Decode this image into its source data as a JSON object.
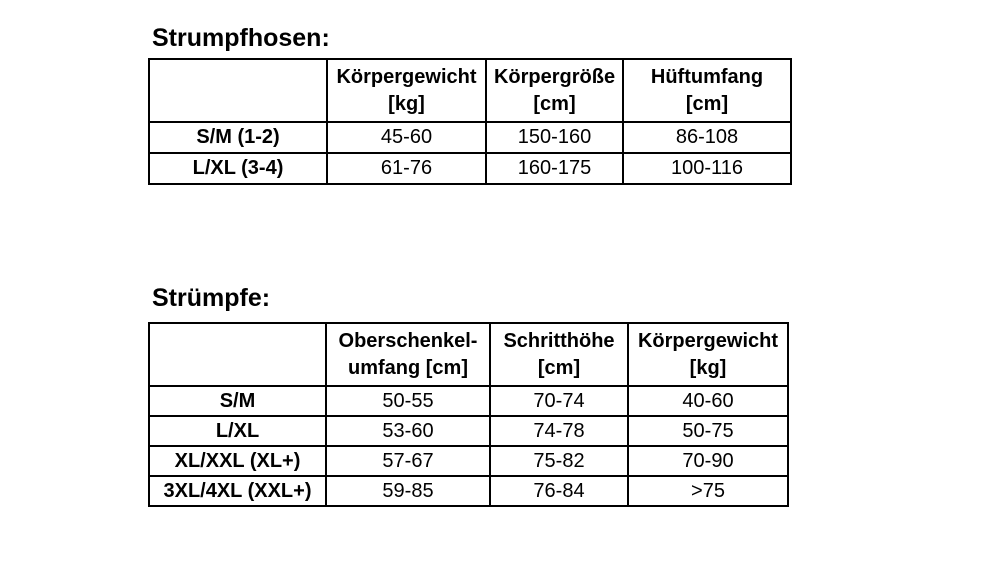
{
  "page": {
    "background_color": "#ffffff",
    "text_color": "#000000",
    "border_color": "#000000"
  },
  "tables": [
    {
      "title": "Strumpfhosen:",
      "headers": [
        {
          "line1": "",
          "line2": ""
        },
        {
          "line1": "Körpergewicht",
          "line2": "[kg]"
        },
        {
          "line1": "Körpergröße",
          "line2": "[cm]"
        },
        {
          "line1": "Hüftumfang",
          "line2": "[cm]"
        }
      ],
      "rows": [
        {
          "label": "S/M (1-2)",
          "values": [
            "45-60",
            "150-160",
            "86-108"
          ]
        },
        {
          "label": "L/XL (3-4)",
          "values": [
            "61-76",
            "160-175",
            "100-116"
          ]
        }
      ]
    },
    {
      "title": "Strümpfe:",
      "headers": [
        {
          "line1": "",
          "line2": ""
        },
        {
          "line1": "Oberschenkel-",
          "line2": "umfang [cm]"
        },
        {
          "line1": "Schritthöhe",
          "line2": "[cm]"
        },
        {
          "line1": "Körpergewicht",
          "line2": "[kg]"
        }
      ],
      "rows": [
        {
          "label": "S/M",
          "values": [
            "50-55",
            "70-74",
            "40-60"
          ]
        },
        {
          "label": "L/XL",
          "values": [
            "53-60",
            "74-78",
            "50-75"
          ]
        },
        {
          "label": "XL/XXL (XL+)",
          "values": [
            "57-67",
            "75-82",
            "70-90"
          ]
        },
        {
          "label": "3XL/4XL (XXL+)",
          "values": [
            "59-85",
            "76-84",
            ">75"
          ]
        }
      ]
    }
  ]
}
